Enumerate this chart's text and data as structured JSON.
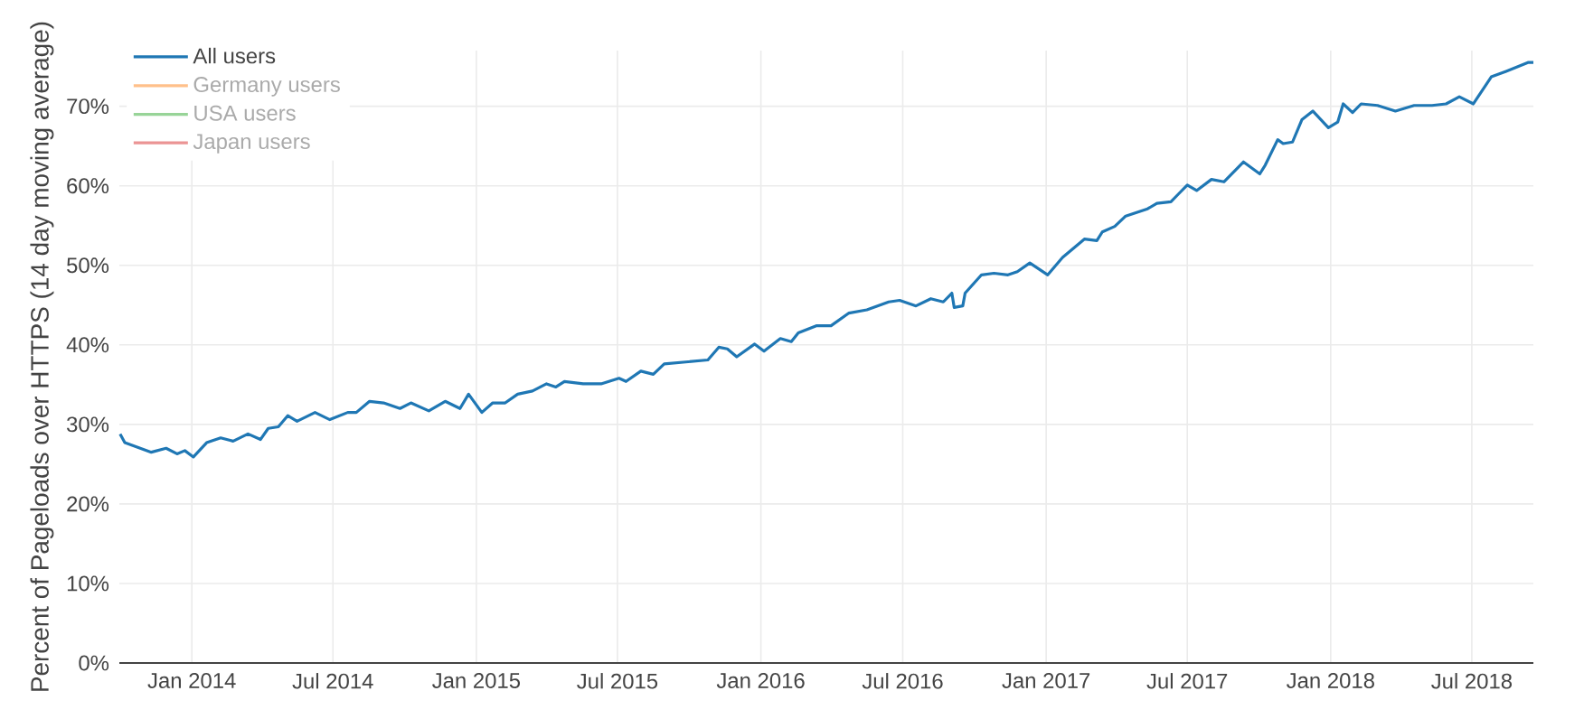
{
  "chart_data": {
    "type": "line",
    "ylabel": "Percent of Pageloads over HTTPS (14 day moving average)",
    "x": [
      "2013-10-01",
      "2013-10-07",
      "2013-11-10",
      "2013-11-29",
      "2013-12-13",
      "2013-12-23",
      "2014-01-03",
      "2014-01-20",
      "2014-02-07",
      "2014-02-23",
      "2014-03-14",
      "2014-03-30",
      "2014-04-09",
      "2014-04-22",
      "2014-05-04",
      "2014-05-16",
      "2014-06-08",
      "2014-06-27",
      "2014-07-20",
      "2014-07-31",
      "2014-08-17",
      "2014-09-04",
      "2014-09-25",
      "2014-10-09",
      "2014-11-01",
      "2014-11-22",
      "2014-12-11",
      "2014-12-22",
      "2015-01-08",
      "2015-01-22",
      "2015-02-07",
      "2015-02-23",
      "2015-03-14",
      "2015-04-01",
      "2015-04-13",
      "2015-04-24",
      "2015-05-18",
      "2015-06-10",
      "2015-07-03",
      "2015-07-12",
      "2015-07-31",
      "2015-08-16",
      "2015-08-30",
      "2015-10-25",
      "2015-11-08",
      "2015-11-19",
      "2015-12-01",
      "2015-12-24",
      "2016-01-05",
      "2016-01-26",
      "2016-02-09",
      "2016-02-18",
      "2016-03-12",
      "2016-03-31",
      "2016-04-23",
      "2016-05-16",
      "2016-06-13",
      "2016-06-27",
      "2016-07-18",
      "2016-08-06",
      "2016-08-22",
      "2016-09-02",
      "2016-09-05",
      "2016-09-16",
      "2016-09-19",
      "2016-10-10",
      "2016-10-26",
      "2016-11-13",
      "2016-11-25",
      "2016-12-11",
      "2017-01-03",
      "2017-01-22",
      "2017-02-19",
      "2017-03-07",
      "2017-03-14",
      "2017-03-30",
      "2017-04-13",
      "2017-05-11",
      "2017-05-23",
      "2017-06-10",
      "2017-06-20",
      "2017-07-01",
      "2017-07-13",
      "2017-08-01",
      "2017-08-17",
      "2017-09-11",
      "2017-10-02",
      "2017-10-09",
      "2017-10-25",
      "2017-11-01",
      "2017-11-13",
      "2017-11-25",
      "2017-12-09",
      "2017-12-29",
      "2018-01-10",
      "2018-01-17",
      "2018-01-29",
      "2018-02-09",
      "2018-03-02",
      "2018-03-25",
      "2018-04-18",
      "2018-05-11",
      "2018-05-29",
      "2018-06-15",
      "2018-07-03",
      "2018-07-26",
      "2018-08-14",
      "2018-09-11",
      "2018-09-18"
    ],
    "series": [
      {
        "name": "All users",
        "color": "#1f77b4",
        "values": [
          28.8,
          27.7,
          26.5,
          27.0,
          26.3,
          26.7,
          25.9,
          27.7,
          28.3,
          27.9,
          28.8,
          28.1,
          29.5,
          29.7,
          31.1,
          30.4,
          31.5,
          30.6,
          31.5,
          31.5,
          32.9,
          32.7,
          32.0,
          32.7,
          31.7,
          32.9,
          32.0,
          33.8,
          31.5,
          32.7,
          32.7,
          33.8,
          34.2,
          35.1,
          34.7,
          35.4,
          35.1,
          35.1,
          35.8,
          35.4,
          36.7,
          36.3,
          37.6,
          38.1,
          39.7,
          39.5,
          38.5,
          40.1,
          39.2,
          40.8,
          40.4,
          41.5,
          42.4,
          42.4,
          44.0,
          44.4,
          45.4,
          45.6,
          44.9,
          45.8,
          45.4,
          46.5,
          44.7,
          44.9,
          46.5,
          48.8,
          49.0,
          48.8,
          49.2,
          50.3,
          48.8,
          51.0,
          53.3,
          53.1,
          54.2,
          54.9,
          56.2,
          57.1,
          57.8,
          58.0,
          59.0,
          60.1,
          59.4,
          60.8,
          60.5,
          63.0,
          61.5,
          62.6,
          65.8,
          65.3,
          65.5,
          68.3,
          69.4,
          67.3,
          68.0,
          70.3,
          69.2,
          70.3,
          70.1,
          69.4,
          70.1,
          70.1,
          70.3,
          71.2,
          70.3,
          73.7,
          74.4,
          75.5,
          75.5
        ]
      },
      {
        "name": "Germany users",
        "color": "#ffc08a",
        "values": [
          null,
          null,
          null,
          null,
          null,
          null,
          null,
          null,
          null,
          null,
          null,
          null,
          null,
          null,
          null,
          null,
          null,
          null,
          null,
          null,
          null,
          null,
          null,
          null,
          null,
          null,
          null,
          null,
          null,
          null,
          null,
          null,
          null,
          null,
          null,
          null,
          null,
          null,
          null,
          null,
          null,
          null,
          null,
          null,
          null,
          null,
          null,
          null,
          null,
          null,
          null,
          null,
          null,
          null,
          null,
          null,
          null,
          null,
          null,
          null,
          null,
          null,
          null,
          null,
          null,
          null,
          null,
          null,
          null,
          null,
          null,
          null,
          null,
          null,
          null,
          null,
          null,
          null,
          null,
          null,
          null,
          null,
          null,
          null,
          null,
          null,
          null,
          null,
          null,
          null,
          null,
          null,
          null,
          null,
          null,
          null,
          null,
          null,
          null,
          null,
          null,
          null,
          null,
          null,
          null,
          null,
          null,
          null,
          null
        ]
      },
      {
        "name": "USA users",
        "color": "#98d498",
        "values": [
          null,
          null,
          null,
          null,
          null,
          null,
          null,
          null,
          null,
          null,
          null,
          null,
          null,
          null,
          null,
          null,
          null,
          null,
          null,
          null,
          null,
          null,
          null,
          null,
          null,
          null,
          null,
          null,
          null,
          null,
          null,
          null,
          null,
          null,
          null,
          null,
          null,
          null,
          null,
          null,
          null,
          null,
          null,
          null,
          null,
          null,
          null,
          null,
          null,
          null,
          null,
          null,
          null,
          null,
          null,
          null,
          null,
          null,
          null,
          null,
          null,
          null,
          null,
          null,
          null,
          null,
          null,
          null,
          null,
          null,
          null,
          null,
          null,
          null,
          null,
          null,
          null,
          null,
          null,
          null,
          null,
          null,
          null,
          null,
          null,
          null,
          null,
          null,
          null,
          null,
          null,
          null,
          null,
          null,
          null,
          null,
          null,
          null,
          null,
          null,
          null,
          null,
          null,
          null,
          null,
          null,
          null,
          null,
          null
        ]
      },
      {
        "name": "Japan users",
        "color": "#eb9494",
        "values": [
          null,
          null,
          null,
          null,
          null,
          null,
          null,
          null,
          null,
          null,
          null,
          null,
          null,
          null,
          null,
          null,
          null,
          null,
          null,
          null,
          null,
          null,
          null,
          null,
          null,
          null,
          null,
          null,
          null,
          null,
          null,
          null,
          null,
          null,
          null,
          null,
          null,
          null,
          null,
          null,
          null,
          null,
          null,
          null,
          null,
          null,
          null,
          null,
          null,
          null,
          null,
          null,
          null,
          null,
          null,
          null,
          null,
          null,
          null,
          null,
          null,
          null,
          null,
          null,
          null,
          null,
          null,
          null,
          null,
          null,
          null,
          null,
          null,
          null,
          null,
          null,
          null,
          null,
          null,
          null,
          null,
          null,
          null,
          null,
          null,
          null,
          null,
          null,
          null,
          null,
          null,
          null,
          null,
          null,
          null,
          null,
          null,
          null,
          null,
          null,
          null,
          null,
          null,
          null,
          null,
          null,
          null,
          null,
          null
        ]
      }
    ],
    "xlim": [
      "2013-09-30",
      "2018-09-18"
    ],
    "xticks": [
      {
        "value": "2014-01-01",
        "label": "Jan 2014"
      },
      {
        "value": "2014-07-01",
        "label": "Jul 2014"
      },
      {
        "value": "2015-01-01",
        "label": "Jan 2015"
      },
      {
        "value": "2015-07-01",
        "label": "Jul 2015"
      },
      {
        "value": "2016-01-01",
        "label": "Jan 2016"
      },
      {
        "value": "2016-07-01",
        "label": "Jul 2016"
      },
      {
        "value": "2017-01-01",
        "label": "Jan 2017"
      },
      {
        "value": "2017-07-01",
        "label": "Jul 2017"
      },
      {
        "value": "2018-01-01",
        "label": "Jan 2018"
      },
      {
        "value": "2018-07-01",
        "label": "Jul 2018"
      }
    ],
    "ylim": [
      0,
      77
    ],
    "yticks": [
      {
        "value": 0,
        "label": "0%"
      },
      {
        "value": 10,
        "label": "10%"
      },
      {
        "value": 20,
        "label": "20%"
      },
      {
        "value": 30,
        "label": "30%"
      },
      {
        "value": 40,
        "label": "40%"
      },
      {
        "value": 50,
        "label": "50%"
      },
      {
        "value": 60,
        "label": "60%"
      },
      {
        "value": 70,
        "label": "70%"
      }
    ],
    "grid": true,
    "legend": "top left",
    "marker": "none",
    "line_style": "solid"
  }
}
